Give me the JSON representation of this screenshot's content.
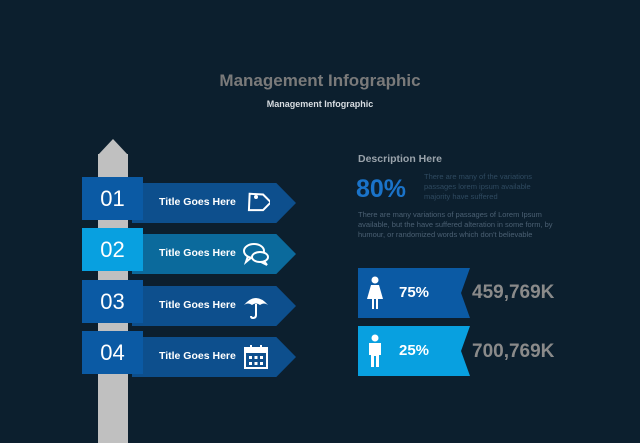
{
  "header": {
    "title": "Management Infographic",
    "subtitle": "Management Infographic"
  },
  "signs": [
    {
      "number": "01",
      "label": "Title Goes Here",
      "icon": "tag-icon",
      "num_color": "#0b5aa4",
      "arrow_color": "#0d4f8d"
    },
    {
      "number": "02",
      "label": "Title Goes Here",
      "icon": "chat-bubbles-icon",
      "num_color": "#08a0e0",
      "arrow_color": "#0b6a9c"
    },
    {
      "number": "03",
      "label": "Title Goes Here",
      "icon": "umbrella-icon",
      "num_color": "#0b5aa4",
      "arrow_color": "#0d4f8d"
    },
    {
      "number": "04",
      "label": "Title Goes Here",
      "icon": "calendar-icon",
      "num_color": "#0b5aa4",
      "arrow_color": "#0d4f8d"
    }
  ],
  "description": {
    "title": "Description Here",
    "percent": "80%",
    "small_text": "There are many of the variations passages lorem ipsum available majority have suffered",
    "paragraph": "There are many variations of passages  of Lorem Ipsum available, but the have suffered alteration in some  form, by humour,  or randomized words  which  don't believable"
  },
  "stats": [
    {
      "icon": "female-person-icon",
      "percent": "75%",
      "value": "459,769K",
      "color": "#0b5aa4"
    },
    {
      "icon": "male-person-icon",
      "percent": "25%",
      "value": "700,769K",
      "color": "#08a0e0"
    }
  ]
}
